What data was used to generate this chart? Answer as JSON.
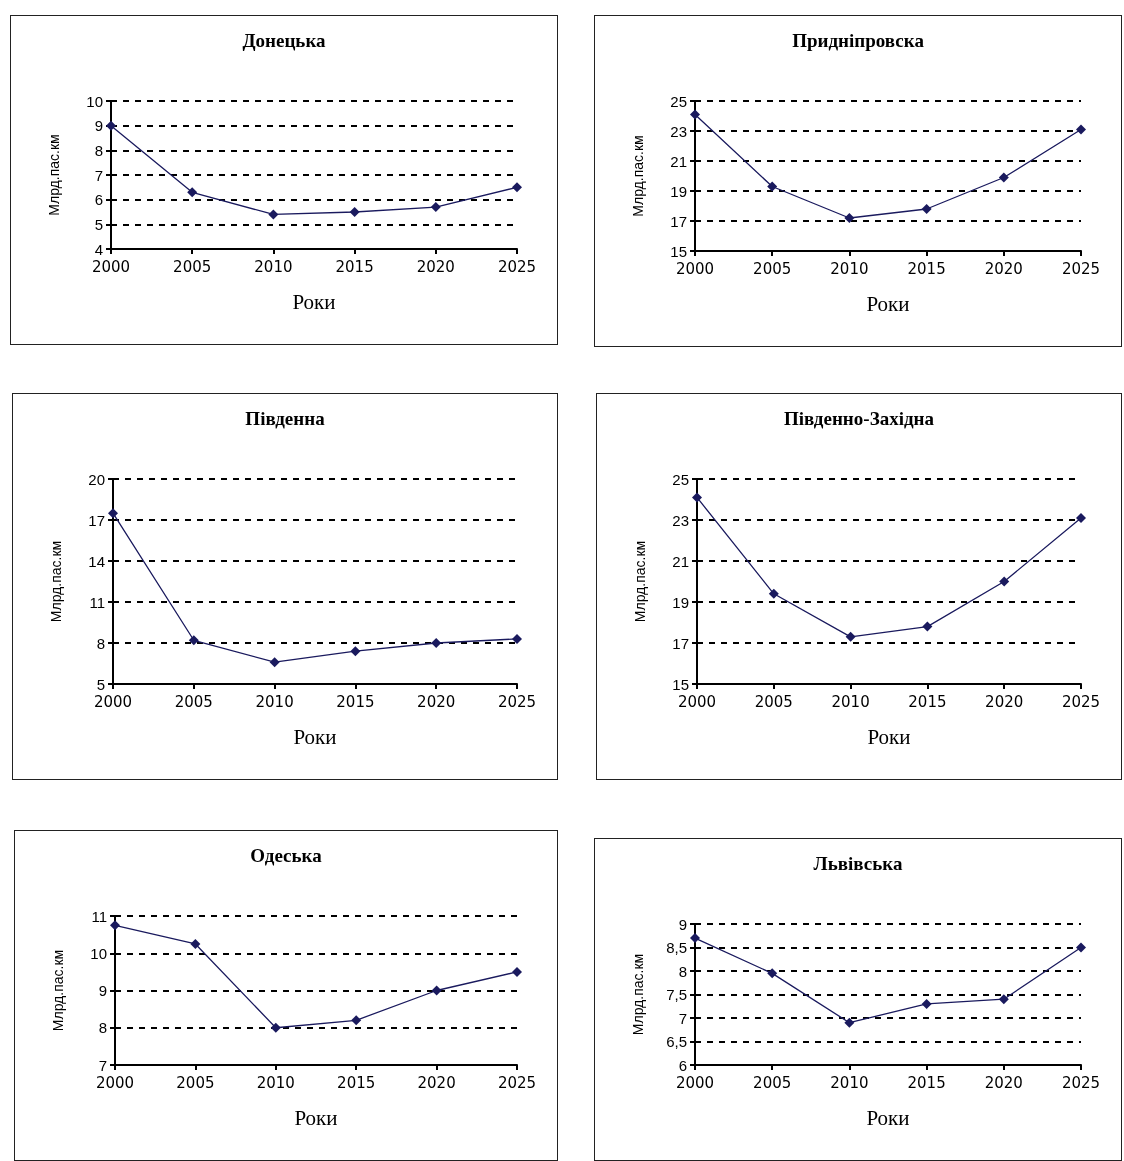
{
  "chart_data": [
    {
      "type": "line",
      "title": "Донецька",
      "xlabel": "Роки",
      "ylabel": "Млрд.пас.км",
      "categories": [
        "2000",
        "2005",
        "2010",
        "2015",
        "2020",
        "2025"
      ],
      "series": [
        {
          "color": "#1a1a5e",
          "values": [
            9,
            6.3,
            5.4,
            5.5,
            5.7,
            6.5
          ]
        }
      ],
      "ylim": [
        4,
        10
      ],
      "yticks": [
        4,
        5,
        6,
        7,
        8,
        9,
        10
      ],
      "grid": "y",
      "marker": "diamond",
      "line_style": "solid"
    },
    {
      "type": "line",
      "title": "Придніпровска",
      "xlabel": "Роки",
      "ylabel": "Млрд.пас.км",
      "categories": [
        "2000",
        "2005",
        "2010",
        "2015",
        "2020",
        "2025"
      ],
      "series": [
        {
          "color": "#1a1a5e",
          "values": [
            24.1,
            19.3,
            17.2,
            17.8,
            19.9,
            23.1
          ]
        }
      ],
      "ylim": [
        15,
        25
      ],
      "yticks": [
        15,
        17,
        19,
        21,
        23,
        25
      ],
      "grid": "y",
      "marker": "diamond",
      "line_style": "solid"
    },
    {
      "type": "line",
      "title": "Південна",
      "xlabel": "Роки",
      "ylabel": "Млрд.пас.км",
      "categories": [
        "2000",
        "2005",
        "2010",
        "2015",
        "2020",
        "2025"
      ],
      "series": [
        {
          "color": "#1a1a5e",
          "values": [
            17.5,
            8.2,
            6.6,
            7.4,
            8,
            8.3
          ]
        }
      ],
      "ylim": [
        5,
        20
      ],
      "yticks": [
        5,
        8,
        11,
        14,
        17,
        20
      ],
      "grid": "y",
      "marker": "diamond",
      "line_style": "solid"
    },
    {
      "type": "line",
      "title": "Південно-Західна",
      "xlabel": "Роки",
      "ylabel": "Млрд.пас.км",
      "categories": [
        "2000",
        "2005",
        "2010",
        "2015",
        "2020",
        "2025"
      ],
      "series": [
        {
          "color": "#1a1a5e",
          "values": [
            24.1,
            19.4,
            17.3,
            17.8,
            20,
            23.1
          ]
        }
      ],
      "ylim": [
        15,
        25
      ],
      "yticks": [
        15,
        17,
        19,
        21,
        23,
        25
      ],
      "grid": "y",
      "marker": "diamond",
      "line_style": "solid"
    },
    {
      "type": "line",
      "title": "Одеська",
      "xlabel": "Роки",
      "ylabel": "Млрд.пас.км",
      "categories": [
        "2000",
        "2005",
        "2010",
        "2015",
        "2020",
        "2025"
      ],
      "series": [
        {
          "color": "#1a1a5e",
          "values": [
            10.75,
            10.25,
            8,
            8.2,
            9,
            9.5
          ]
        }
      ],
      "ylim": [
        7,
        11
      ],
      "yticks": [
        7,
        8,
        9,
        10,
        11
      ],
      "grid": "y",
      "marker": "diamond",
      "line_style": "solid"
    },
    {
      "type": "line",
      "title": "Львівська",
      "xlabel": "Роки",
      "ylabel": "Млрд.пас.км",
      "categories": [
        "2000",
        "2005",
        "2010",
        "2015",
        "2020",
        "2025"
      ],
      "series": [
        {
          "color": "#1a1a5e",
          "values": [
            8.7,
            7.95,
            6.9,
            7.3,
            7.4,
            8.5
          ]
        }
      ],
      "ylim": [
        6,
        9
      ],
      "yticks": [
        6,
        {
          "value": 6.5,
          "label": "6,5"
        },
        7,
        {
          "value": 7.5,
          "label": "7,5"
        },
        8,
        {
          "value": 8.5,
          "label": "8,5"
        },
        9
      ],
      "grid": "y",
      "marker": "diamond",
      "line_style": "solid"
    }
  ]
}
